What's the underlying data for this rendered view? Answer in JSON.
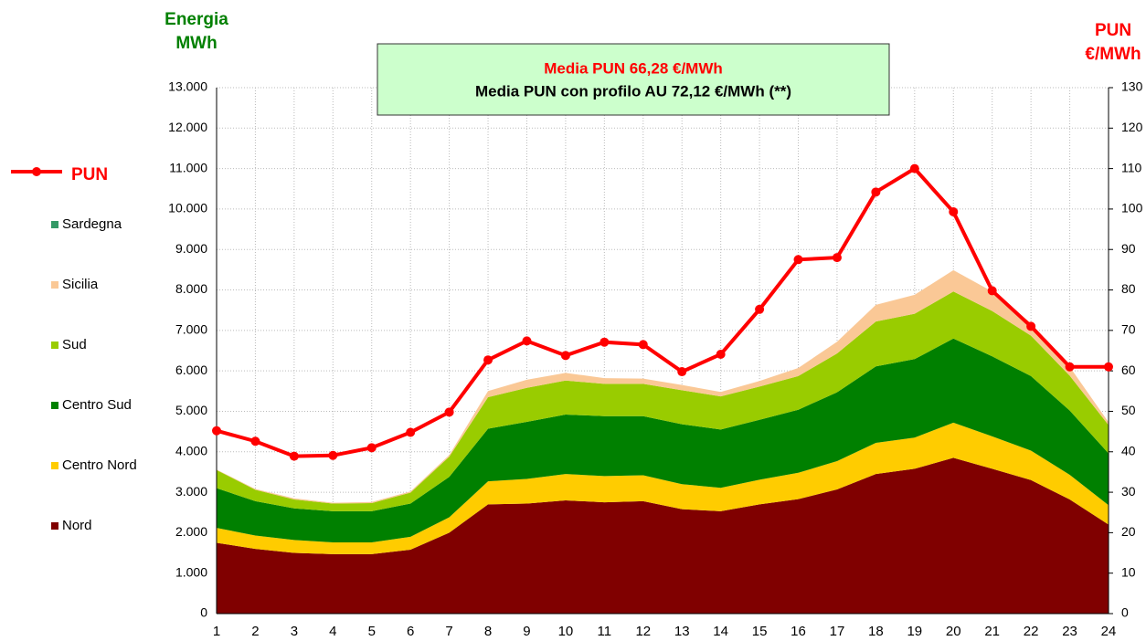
{
  "chart_data": {
    "type": "stacked_area_line",
    "y_label_lines": [
      "Energia",
      "MWh"
    ],
    "y2_label_lines": [
      "PUN",
      "€/MWh"
    ],
    "annotation_lines": [
      "Media PUN 66,28 €/MWh",
      "Media PUN con profilo AU 72,12  €/MWh (**)"
    ],
    "categories": [
      "1",
      "2",
      "3",
      "4",
      "5",
      "6",
      "7",
      "8",
      "9",
      "10",
      "11",
      "12",
      "13",
      "14",
      "15",
      "16",
      "17",
      "18",
      "19",
      "20",
      "21",
      "22",
      "23",
      "24"
    ],
    "series": [
      {
        "name": "Nord",
        "color": "#800000",
        "values": [
          1750,
          1600,
          1500,
          1470,
          1470,
          1580,
          2000,
          2700,
          2720,
          2800,
          2750,
          2780,
          2580,
          2530,
          2700,
          2830,
          3070,
          3450,
          3580,
          3850,
          3580,
          3300,
          2820,
          2200
        ]
      },
      {
        "name": "Centro Nord",
        "color": "#ffcc00",
        "values": [
          370,
          330,
          320,
          290,
          290,
          320,
          380,
          570,
          610,
          650,
          650,
          640,
          620,
          580,
          610,
          650,
          700,
          770,
          770,
          870,
          800,
          730,
          610,
          480
        ]
      },
      {
        "name": "Centro Sud",
        "color": "#008000",
        "values": [
          980,
          850,
          780,
          770,
          770,
          820,
          1000,
          1300,
          1410,
          1470,
          1480,
          1460,
          1480,
          1440,
          1480,
          1560,
          1700,
          1890,
          1940,
          2080,
          1980,
          1840,
          1590,
          1280
        ]
      },
      {
        "name": "Sud",
        "color": "#99cc00",
        "values": [
          450,
          280,
          220,
          190,
          200,
          270,
          500,
          780,
          840,
          840,
          800,
          800,
          840,
          820,
          820,
          830,
          960,
          1110,
          1120,
          1160,
          1120,
          1000,
          860,
          700
        ]
      },
      {
        "name": "Sicilia",
        "color": "#fac896",
        "values": [
          10,
          20,
          30,
          20,
          30,
          30,
          40,
          150,
          200,
          190,
          140,
          130,
          130,
          110,
          140,
          200,
          290,
          410,
          470,
          530,
          480,
          310,
          220,
          70
        ]
      },
      {
        "name": "Sardegna",
        "color": "#339966",
        "values": [
          0,
          0,
          0,
          0,
          0,
          0,
          0,
          0,
          0,
          0,
          0,
          0,
          0,
          0,
          0,
          0,
          0,
          0,
          0,
          0,
          0,
          0,
          0,
          0
        ]
      },
      {
        "name": "PUN",
        "color": "#ff0000",
        "axis": "y2",
        "values": [
          45.2,
          42.6,
          38.9,
          39.1,
          41.0,
          44.8,
          49.8,
          62.7,
          67.4,
          63.8,
          67.1,
          66.5,
          59.8,
          64.1,
          75.2,
          87.5,
          88.0,
          104.2,
          110.0,
          99.3,
          79.8,
          71.0,
          61.0,
          61.0
        ]
      }
    ],
    "ylim": [
      0,
      13000
    ],
    "yticks": [
      0,
      {
        "value": 1000,
        "label": "1.000"
      },
      {
        "value": 2000,
        "label": "2.000"
      },
      {
        "value": 3000,
        "label": "3.000"
      },
      {
        "value": 4000,
        "label": "4.000"
      },
      {
        "value": 5000,
        "label": "5.000"
      },
      {
        "value": 6000,
        "label": "6.000"
      },
      {
        "value": 7000,
        "label": "7.000"
      },
      {
        "value": 8000,
        "label": "8.000"
      },
      {
        "value": 9000,
        "label": "9.000"
      },
      {
        "value": 10000,
        "label": "10.000"
      },
      {
        "value": 11000,
        "label": "11.000"
      },
      {
        "value": 12000,
        "label": "12.000"
      },
      {
        "value": 13000,
        "label": "13.000"
      }
    ],
    "y2lim": [
      0,
      130
    ],
    "y2ticks": [
      0,
      10,
      20,
      30,
      40,
      50,
      60,
      70,
      80,
      90,
      100,
      110,
      120,
      130
    ],
    "grid": true,
    "legend": "left"
  }
}
